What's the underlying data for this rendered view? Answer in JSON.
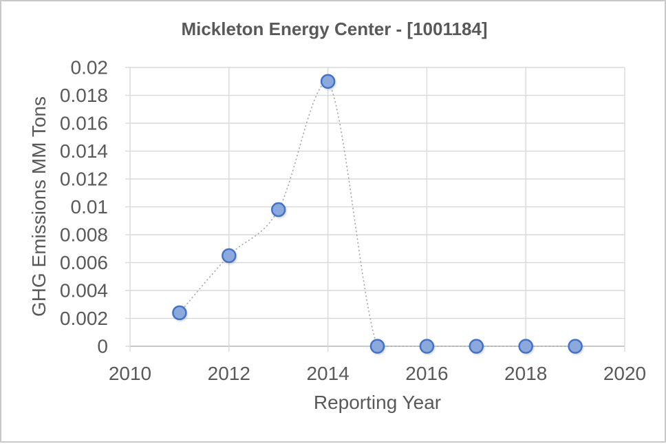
{
  "window": {
    "background": "#FFFFFF",
    "border_color": "#C9C9C9"
  },
  "chart_data": {
    "type": "scatter",
    "title": "Mickleton Energy Center - [1001184]",
    "xlabel": "Reporting Year",
    "ylabel": "GHG Emissions MM Tons",
    "x": [
      2011,
      2012,
      2013,
      2014,
      2015,
      2016,
      2017,
      2018,
      2019
    ],
    "y": [
      0.0024,
      0.0065,
      0.0098,
      0.019,
      0,
      0,
      0,
      0,
      0
    ],
    "xlim": [
      2010,
      2020
    ],
    "ylim": [
      0,
      0.02
    ],
    "x_tick_labels": [
      "2010",
      "2012",
      "2014",
      "2016",
      "2018",
      "2020"
    ],
    "y_tick_labels": [
      "0",
      "0.002",
      "0.004",
      "0.006",
      "0.008",
      "0.01",
      "0.012",
      "0.014",
      "0.016",
      "0.018",
      "0.02"
    ],
    "grid": true,
    "legend": false,
    "line": {
      "style": "dotted",
      "smooth": true,
      "color": "#A8A8A8"
    },
    "marker": {
      "shape": "circle",
      "fill": "#8CA9DE",
      "stroke": "#4472C4"
    },
    "colors": {
      "grid": "#D9D9D9",
      "axis": "#C1C1C1",
      "text": "#595959"
    }
  }
}
